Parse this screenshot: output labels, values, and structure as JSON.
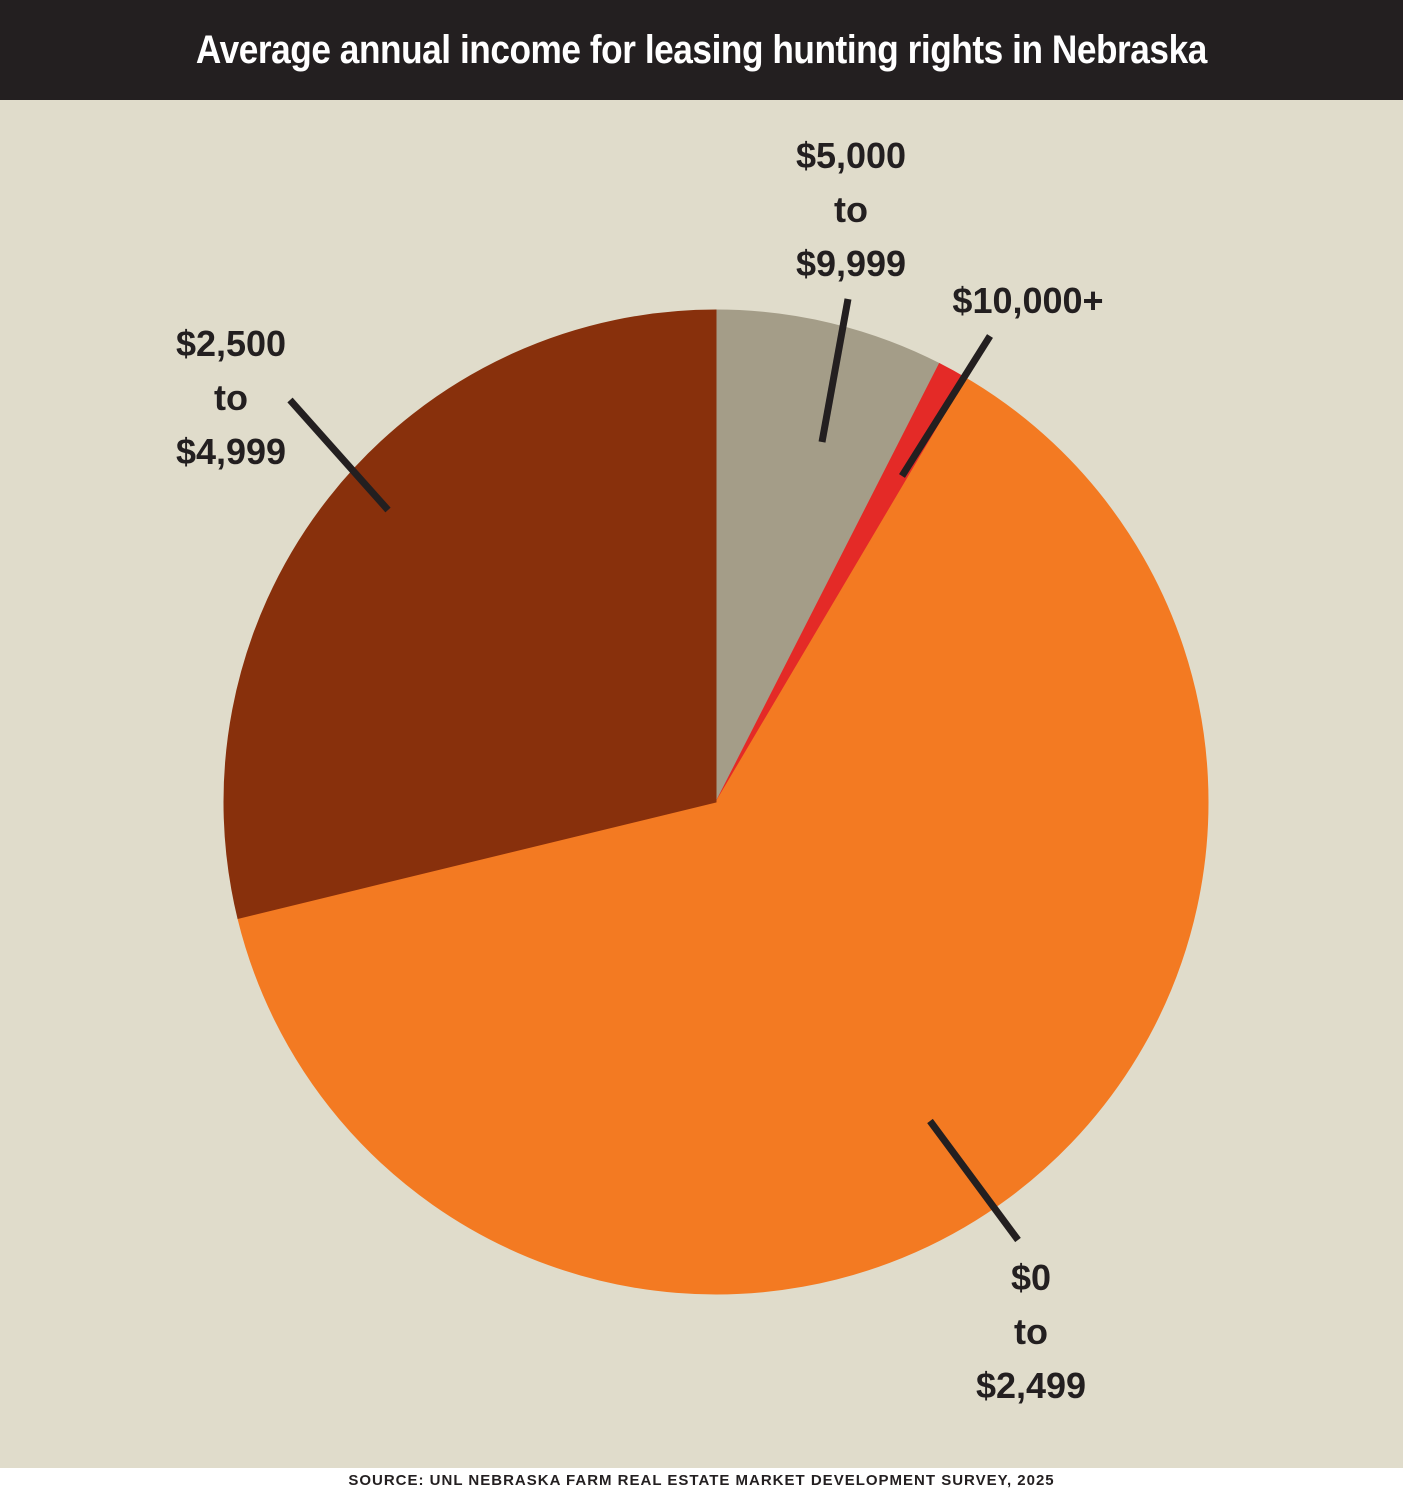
{
  "colors": {
    "title_bg": "#231f20",
    "panel_bg": "#e0dccb",
    "label_text": "#231f20",
    "leader_line": "#231f20"
  },
  "chart_data": {
    "type": "pie",
    "title": "Average annual income for leasing hunting rights in Nebraska",
    "source": "SOURCE: UNL NEBRASKA FARM REAL ESTATE MARKET DEVELOPMENT SURVEY, 2025",
    "start_angle_deg": 0,
    "direction": "clockwise",
    "legend": "none",
    "slices": [
      {
        "label": "$5,000 to $9,999",
        "label_lines": [
          "$5,000",
          "to",
          "$9,999"
        ],
        "value": 7.5,
        "unit": "%",
        "color": "#a49d88"
      },
      {
        "label": "$10,000+",
        "label_lines": [
          "$10,000+"
        ],
        "value": 1.0,
        "unit": "%",
        "color": "#e42a27"
      },
      {
        "label": "$0 to $2,499",
        "label_lines": [
          "$0",
          "to",
          "$2,499"
        ],
        "value": 62.7,
        "unit": "%",
        "color": "#f37a22"
      },
      {
        "label": "$2,500 to $4,999",
        "label_lines": [
          "$2,500",
          "to",
          "$4,999"
        ],
        "value": 28.8,
        "unit": "%",
        "color": "#88300c"
      }
    ]
  }
}
